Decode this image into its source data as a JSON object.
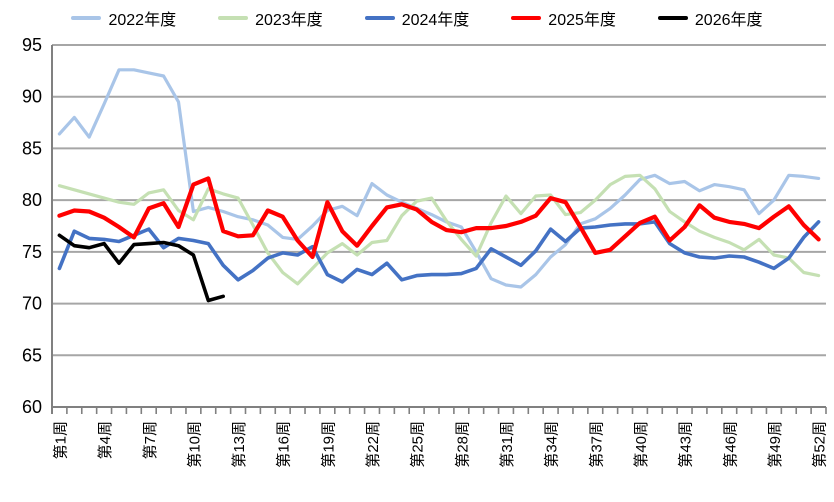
{
  "chart_data": {
    "type": "line",
    "x_unit_label_prefix": "第",
    "x_unit_label_suffix": "周",
    "x_count": 52,
    "x_tick_labels": [
      "第1周",
      "第4周",
      "第7周",
      "第10周",
      "第13周",
      "第16周",
      "第19周",
      "第22周",
      "第25周",
      "第28周",
      "第31周",
      "第34周",
      "第37周",
      "第40周",
      "第43周",
      "第46周",
      "第49周",
      "第52周"
    ],
    "x_tick_weeks": [
      1,
      4,
      7,
      10,
      13,
      16,
      19,
      22,
      25,
      28,
      31,
      34,
      37,
      40,
      43,
      46,
      49,
      52
    ],
    "y_ticks": [
      60,
      65,
      70,
      75,
      80,
      85,
      90,
      95
    ],
    "ylim": [
      60,
      95
    ],
    "grid": true,
    "legend_position": "top",
    "colors": {
      "gridline": "#a6a6a6",
      "axis": "#808080",
      "text": "#000000",
      "background": "#ffffff"
    },
    "series": [
      {
        "name": "2022年度",
        "color": "#a9c5e8",
        "stroke_width": 3.2,
        "values": [
          86.4,
          88.0,
          86.1,
          89.3,
          92.6,
          92.6,
          92.3,
          92.0,
          89.5,
          78.9,
          79.3,
          78.9,
          78.4,
          78.1,
          77.6,
          76.4,
          76.2,
          77.5,
          79.0,
          79.4,
          78.5,
          81.6,
          80.5,
          79.8,
          79.2,
          78.6,
          77.9,
          77.4,
          75.0,
          72.4,
          71.8,
          71.6,
          72.8,
          74.5,
          75.7,
          77.7,
          78.2,
          79.2,
          80.5,
          82.0,
          82.4,
          81.6,
          81.8,
          80.9,
          81.5,
          81.3,
          81.0,
          78.7,
          80.0,
          82.4,
          82.3,
          82.1
        ]
      },
      {
        "name": "2023年度",
        "color": "#c5e0b3",
        "stroke_width": 3.2,
        "values": [
          81.4,
          81.0,
          80.6,
          80.2,
          79.8,
          79.6,
          80.7,
          81.0,
          79.0,
          78.1,
          81.1,
          80.6,
          80.2,
          77.6,
          74.9,
          73.0,
          71.9,
          73.4,
          74.9,
          75.8,
          74.7,
          75.9,
          76.1,
          78.5,
          79.9,
          80.2,
          78.0,
          76.2,
          74.6,
          77.8,
          80.4,
          78.7,
          80.4,
          80.5,
          78.6,
          78.8,
          80.0,
          81.5,
          82.3,
          82.4,
          81.1,
          78.9,
          77.9,
          77.0,
          76.4,
          75.9,
          75.2,
          76.2,
          74.7,
          74.4,
          73.0,
          72.7
        ]
      },
      {
        "name": "2024年度",
        "color": "#4472c4",
        "stroke_width": 3.6,
        "values": [
          73.4,
          77.0,
          76.3,
          76.2,
          76.0,
          76.6,
          77.2,
          75.4,
          76.3,
          76.1,
          75.8,
          73.7,
          72.3,
          73.2,
          74.4,
          74.9,
          74.7,
          75.5,
          72.8,
          72.1,
          73.3,
          72.8,
          73.9,
          72.3,
          72.7,
          72.8,
          72.8,
          72.9,
          73.4,
          75.3,
          74.5,
          73.7,
          75.1,
          77.2,
          76.0,
          77.3,
          77.4,
          77.6,
          77.7,
          77.7,
          77.9,
          75.8,
          74.9,
          74.5,
          74.4,
          74.6,
          74.5,
          74.0,
          73.4,
          74.4,
          76.4,
          77.9
        ]
      },
      {
        "name": "2025年度",
        "color": "#ff0000",
        "stroke_width": 4.2,
        "values": [
          78.5,
          79.0,
          78.9,
          78.3,
          77.4,
          76.4,
          79.2,
          79.7,
          77.4,
          81.5,
          82.1,
          77.0,
          76.5,
          76.6,
          79.0,
          78.4,
          76.1,
          74.5,
          79.8,
          77.0,
          75.6,
          77.5,
          79.3,
          79.6,
          79.1,
          77.9,
          77.1,
          76.9,
          77.3,
          77.3,
          77.5,
          77.9,
          78.5,
          80.2,
          79.8,
          77.4,
          74.9,
          75.2,
          76.5,
          77.8,
          78.4,
          76.1,
          77.4,
          79.5,
          78.3,
          77.9,
          77.7,
          77.3,
          78.4,
          79.4,
          77.6,
          76.2
        ]
      },
      {
        "name": "2026年度",
        "color": "#000000",
        "stroke_width": 3.6,
        "values": [
          76.6,
          75.6,
          75.4,
          75.8,
          73.9,
          75.7,
          75.8,
          75.9,
          75.6,
          74.7,
          70.3,
          70.7
        ]
      }
    ]
  }
}
